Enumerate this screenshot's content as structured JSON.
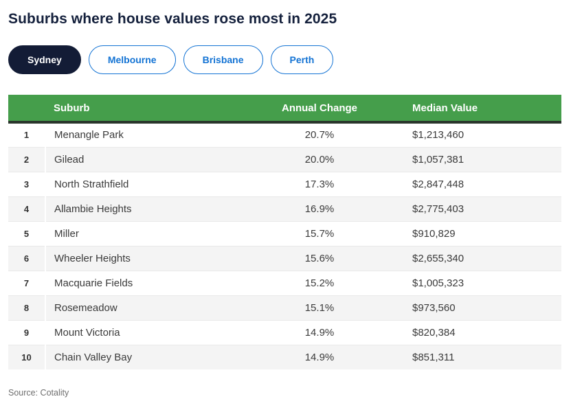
{
  "title": "Suburbs where house values rose most in 2025",
  "tabs": [
    {
      "label": "Sydney",
      "active": true
    },
    {
      "label": "Melbourne",
      "active": false
    },
    {
      "label": "Brisbane",
      "active": false
    },
    {
      "label": "Perth",
      "active": false
    }
  ],
  "table": {
    "columns": [
      "Suburb",
      "Annual Change",
      "Median Value"
    ],
    "rows": [
      {
        "rank": "1",
        "suburb": "Menangle Park",
        "annual_change": "20.7%",
        "median_value": "$1,213,460"
      },
      {
        "rank": "2",
        "suburb": "Gilead",
        "annual_change": "20.0%",
        "median_value": "$1,057,381"
      },
      {
        "rank": "3",
        "suburb": "North Strathfield",
        "annual_change": "17.3%",
        "median_value": "$2,847,448"
      },
      {
        "rank": "4",
        "suburb": "Allambie Heights",
        "annual_change": "16.9%",
        "median_value": "$2,775,403"
      },
      {
        "rank": "5",
        "suburb": "Miller",
        "annual_change": "15.7%",
        "median_value": "$910,829"
      },
      {
        "rank": "6",
        "suburb": "Wheeler Heights",
        "annual_change": "15.6%",
        "median_value": "$2,655,340"
      },
      {
        "rank": "7",
        "suburb": "Macquarie Fields",
        "annual_change": "15.2%",
        "median_value": "$1,005,323"
      },
      {
        "rank": "8",
        "suburb": "Rosemeadow",
        "annual_change": "15.1%",
        "median_value": "$973,560"
      },
      {
        "rank": "9",
        "suburb": "Mount Victoria",
        "annual_change": "14.9%",
        "median_value": "$820,384"
      },
      {
        "rank": "10",
        "suburb": "Chain Valley Bay",
        "annual_change": "14.9%",
        "median_value": "$851,311"
      }
    ]
  },
  "source": "Source: Cotality",
  "colors": {
    "title_navy": "#14203c",
    "active_tab_bg": "#131c36",
    "tab_blue": "#1373d4",
    "header_green": "#459e4b",
    "header_dark_border": "#2a362c",
    "row_alt_gray": "#f4f4f4",
    "source_gray": "#6e6e6e"
  },
  "chart_data": {
    "type": "table",
    "title": "Suburbs where house values rose most in 2025",
    "selected_city": "Sydney",
    "city_options": [
      "Sydney",
      "Melbourne",
      "Brisbane",
      "Perth"
    ],
    "columns": [
      "Rank",
      "Suburb",
      "Annual Change (%)",
      "Median Value ($)"
    ],
    "rows": [
      [
        1,
        "Menangle Park",
        20.7,
        1213460
      ],
      [
        2,
        "Gilead",
        20.0,
        1057381
      ],
      [
        3,
        "North Strathfield",
        17.3,
        2847448
      ],
      [
        4,
        "Allambie Heights",
        16.9,
        2775403
      ],
      [
        5,
        "Miller",
        15.7,
        910829
      ],
      [
        6,
        "Wheeler Heights",
        15.6,
        2655340
      ],
      [
        7,
        "Macquarie Fields",
        15.2,
        1005323
      ],
      [
        8,
        "Rosemeadow",
        15.1,
        973560
      ],
      [
        9,
        "Mount Victoria",
        14.9,
        820384
      ],
      [
        10,
        "Chain Valley Bay",
        14.9,
        851311
      ]
    ],
    "source": "Source: Cotality"
  }
}
